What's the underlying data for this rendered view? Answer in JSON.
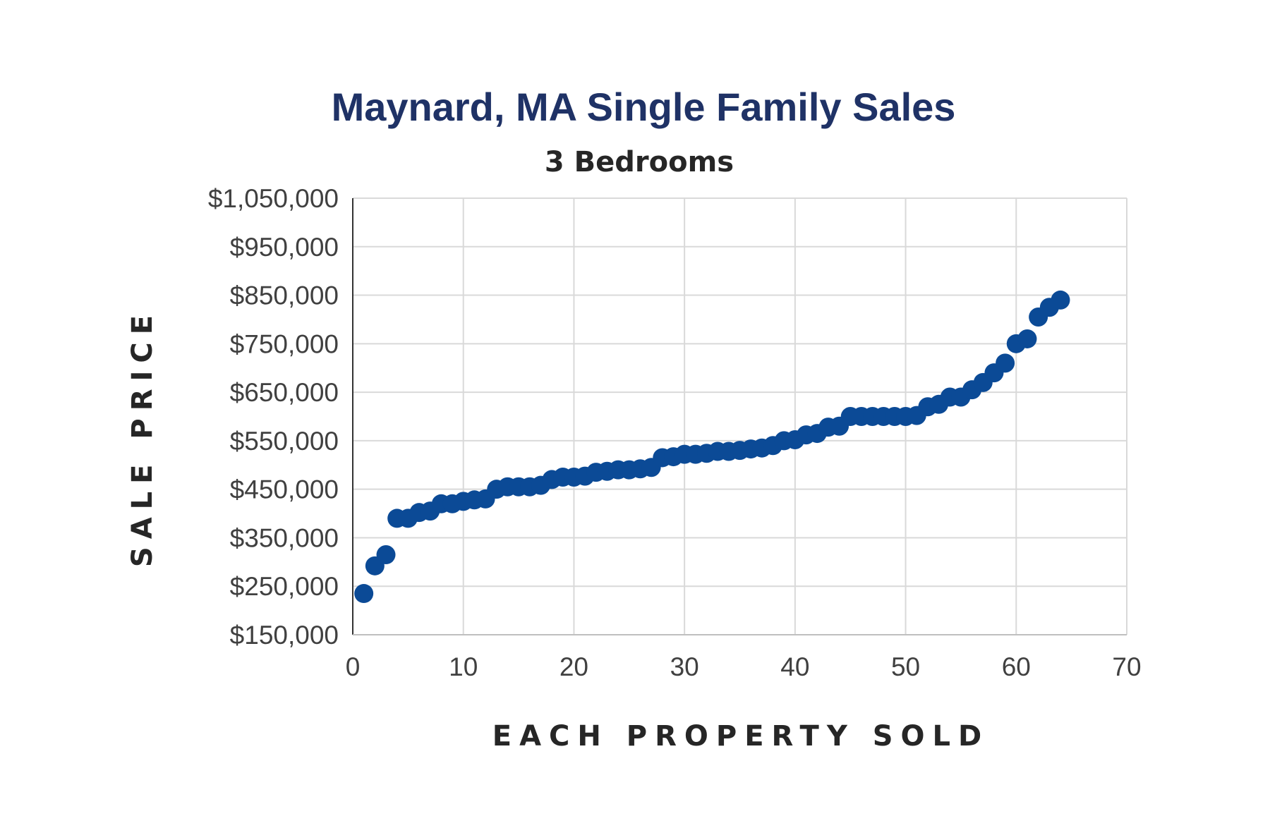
{
  "chart_data": {
    "type": "scatter",
    "title": "Maynard, MA Single Family Sales",
    "subtitle": "3 Bedrooms",
    "xlabel": "EACH PROPERTY SOLD",
    "ylabel": "SALE PRICE",
    "xlim": [
      0,
      70
    ],
    "ylim": [
      150000,
      1050000
    ],
    "x_ticks": [
      "0",
      "10",
      "20",
      "30",
      "40",
      "50",
      "60",
      "70"
    ],
    "y_ticks": [
      "$1,050,000",
      "$950,000",
      "$850,000",
      "$750,000",
      "$650,000",
      "$550,000",
      "$450,000",
      "$350,000",
      "$250,000",
      "$150,000"
    ],
    "grid": true,
    "colors": {
      "title": "#1f3266",
      "points": "#0b4a96",
      "grid": "#d9d9d9"
    },
    "x": [
      1,
      2,
      3,
      4,
      5,
      6,
      7,
      8,
      9,
      10,
      11,
      12,
      13,
      14,
      15,
      16,
      17,
      18,
      19,
      20,
      21,
      22,
      23,
      24,
      25,
      26,
      27,
      28,
      29,
      30,
      31,
      32,
      33,
      34,
      35,
      36,
      37,
      38,
      39,
      40,
      41,
      42,
      43,
      44,
      45,
      46,
      47,
      48,
      49,
      50,
      51,
      52,
      53,
      54,
      55,
      56,
      57,
      58,
      59,
      60,
      61,
      62,
      63,
      64
    ],
    "y": [
      235000,
      292000,
      315000,
      390000,
      390000,
      402000,
      405000,
      420000,
      420000,
      425000,
      428000,
      430000,
      450000,
      455000,
      455000,
      455000,
      458000,
      470000,
      475000,
      475000,
      477000,
      485000,
      487000,
      490000,
      490000,
      492000,
      495000,
      515000,
      517000,
      522000,
      522000,
      524000,
      528000,
      528000,
      530000,
      533000,
      535000,
      540000,
      550000,
      552000,
      562000,
      565000,
      578000,
      580000,
      600000,
      600000,
      600000,
      600000,
      600000,
      600000,
      602000,
      620000,
      625000,
      640000,
      640000,
      655000,
      670000,
      690000,
      710000,
      750000,
      760000,
      805000,
      825000,
      840000
    ]
  }
}
